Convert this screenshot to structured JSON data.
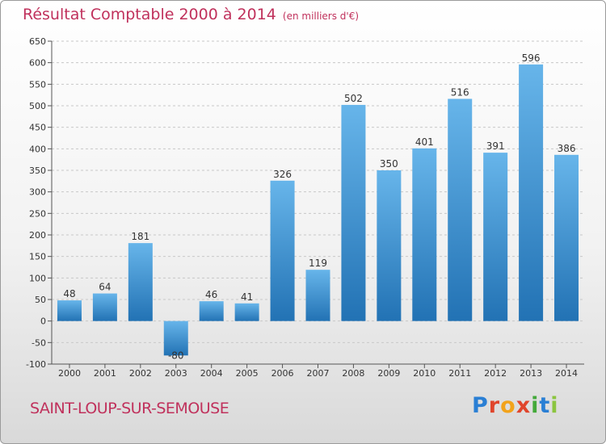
{
  "title": "Résultat Comptable 2000 à 2014",
  "title_unit": "(en milliers d'€)",
  "commune": "SAINT-LOUP-SUR-SEMOUSE",
  "logo": {
    "letters": [
      "P",
      "r",
      "o",
      "x",
      "i",
      "t",
      "i"
    ],
    "colors": [
      "#2a7fd4",
      "#e0452c",
      "#f2a31b",
      "#e0452c",
      "#43a93a",
      "#2a7fd4",
      "#8bc53f"
    ]
  },
  "colors": {
    "bar_light": "#67b5ea",
    "bar_dark": "#2272b4",
    "title": "#c0315c"
  },
  "chart_data": {
    "type": "bar",
    "categories": [
      "2000",
      "2001",
      "2002",
      "2003",
      "2004",
      "2005",
      "2006",
      "2007",
      "2008",
      "2009",
      "2010",
      "2011",
      "2012",
      "2013",
      "2014"
    ],
    "values": [
      48,
      64,
      181,
      -80,
      46,
      41,
      326,
      119,
      502,
      350,
      401,
      516,
      391,
      596,
      386
    ],
    "ylim": [
      -100,
      650
    ],
    "yticks": [
      -100,
      -50,
      0,
      50,
      100,
      150,
      200,
      250,
      300,
      350,
      400,
      450,
      500,
      550,
      600,
      650
    ],
    "grid": true,
    "xlabel": "",
    "ylabel": ""
  }
}
